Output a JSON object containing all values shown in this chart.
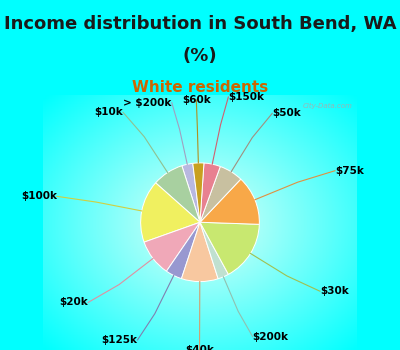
{
  "title1": "Income distribution in South Bend, WA",
  "title2": "(%)",
  "subtitle": "White residents",
  "labels": [
    "> $200k",
    "$10k",
    "$100k",
    "$20k",
    "$125k",
    "$40k",
    "$200k",
    "$30k",
    "$75k",
    "$50k",
    "$150k",
    "$60k"
  ],
  "values": [
    3.0,
    8.5,
    17.0,
    10.0,
    4.5,
    10.0,
    3.0,
    16.5,
    13.5,
    6.5,
    4.5,
    3.0
  ],
  "colors": [
    "#b8b8e0",
    "#a8d0a0",
    "#f0f060",
    "#f0a8b8",
    "#9898d0",
    "#f8c8a0",
    "#c0e0d0",
    "#c8e870",
    "#f8a848",
    "#c8c0a0",
    "#e88090",
    "#c8a020"
  ],
  "bg_color": "#00ffff",
  "chart_bg_outer": "#c0f0f0",
  "chart_bg_inner": "#f0fff8",
  "startangle": 97,
  "title_fontsize": 13,
  "subtitle_fontsize": 11,
  "label_fontsize": 7.5,
  "watermark": "City-Data.com"
}
